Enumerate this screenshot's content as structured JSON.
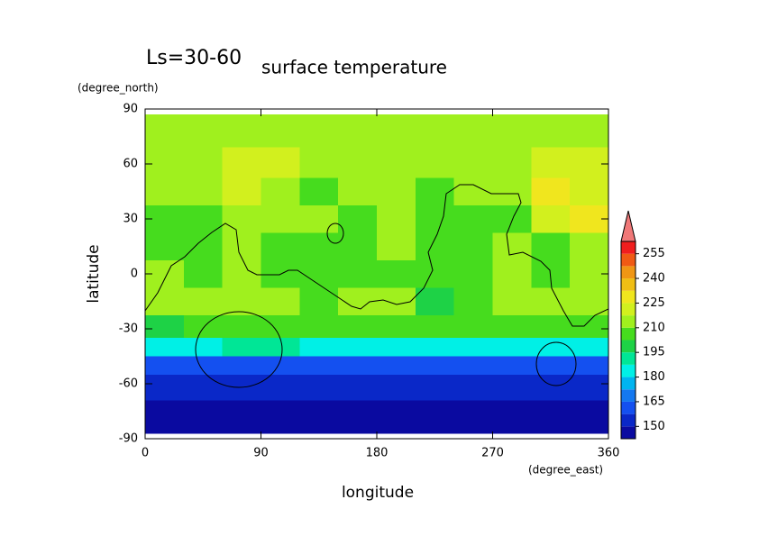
{
  "chart_data": {
    "type": "contourf",
    "title": "surface temperature",
    "subtitle": "Ls=30-60",
    "x_label": "longitude",
    "x_unit": "(degree_east)",
    "y_label": "latitude",
    "y_unit": "(degree_north)",
    "x": [
      15,
      45,
      75,
      105,
      135,
      165,
      195,
      225,
      255,
      285,
      315,
      345
    ],
    "y": [
      78,
      60,
      45,
      30,
      15,
      0,
      -15,
      -30,
      -40,
      -50,
      -60,
      -78
    ],
    "z": [
      [
        213,
        213,
        213,
        213,
        213,
        213,
        213,
        213,
        213,
        213,
        213,
        213
      ],
      [
        214,
        216,
        222,
        218,
        215,
        216,
        214,
        212,
        214,
        216,
        224,
        222
      ],
      [
        212,
        210,
        220,
        214,
        208,
        212,
        213,
        206,
        210,
        214,
        226,
        224
      ],
      [
        206,
        204,
        214,
        212,
        210,
        208,
        214,
        205,
        206,
        206,
        222,
        226
      ],
      [
        208,
        206,
        214,
        206,
        204,
        204,
        212,
        206,
        205,
        212,
        208,
        212
      ],
      [
        214,
        206,
        212,
        206,
        204,
        206,
        208,
        204,
        206,
        210,
        208,
        214
      ],
      [
        212,
        210,
        212,
        212,
        206,
        210,
        212,
        196,
        204,
        210,
        210,
        212
      ],
      [
        202,
        204,
        206,
        206,
        204,
        204,
        204,
        204,
        204,
        204,
        206,
        204
      ],
      [
        186,
        186,
        188,
        188,
        186,
        186,
        186,
        186,
        186,
        186,
        186,
        186
      ],
      [
        162,
        162,
        162,
        164,
        162,
        162,
        162,
        162,
        162,
        162,
        162,
        162
      ],
      [
        150,
        150,
        150,
        150,
        150,
        150,
        150,
        150,
        150,
        150,
        150,
        150
      ],
      [
        146,
        146,
        146,
        146,
        146,
        146,
        146,
        146,
        146,
        146,
        146,
        146
      ]
    ],
    "levels": [
      142.5,
      150,
      157.5,
      165,
      172.5,
      180,
      187.5,
      195,
      202.5,
      210,
      217.5,
      225,
      232.5,
      240,
      247.5,
      255,
      262.5
    ],
    "colors": [
      "#0a0aa0",
      "#0a28c8",
      "#1450f0",
      "#1478f0",
      "#00b4f0",
      "#00f0e6",
      "#00e696",
      "#1ed246",
      "#46dc1e",
      "#a0f01e",
      "#d2f01e",
      "#f0e61e",
      "#f0be14",
      "#f09614",
      "#f05a14",
      "#f01e1e"
    ],
    "over_color": "#f07878",
    "colorbar_ticks": [
      150,
      165,
      180,
      195,
      210,
      225,
      240,
      255
    ],
    "xlim": [
      0,
      360
    ],
    "xticks": [
      0,
      90,
      180,
      270,
      360
    ],
    "ylim": [
      -90,
      90
    ],
    "yticks": [
      -90,
      -60,
      -30,
      0,
      30,
      60,
      90
    ]
  }
}
